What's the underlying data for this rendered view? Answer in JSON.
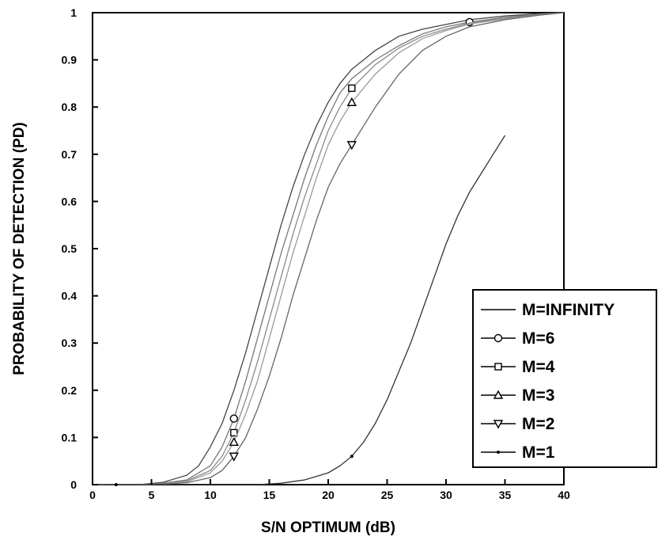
{
  "chart_data": {
    "type": "line",
    "title": "",
    "xlabel": "S/N OPTIMUM (dB)",
    "ylabel": "PROBABILITY OF DETECTION (PD)",
    "xlim": [
      0,
      40
    ],
    "ylim": [
      0,
      1
    ],
    "xticks": [
      "0",
      "5",
      "10",
      "15",
      "20",
      "25",
      "30",
      "35",
      "40"
    ],
    "yticks": [
      "0",
      "0.1",
      "0.2",
      "0.3",
      "0.4",
      "0.5",
      "0.6",
      "0.7",
      "0.8",
      "0.9",
      "1"
    ],
    "grid": false,
    "legend_position": "bottom-right",
    "series": [
      {
        "name": "M=INFINITY",
        "marker": "none",
        "x": [
          0,
          4,
          6,
          8,
          9,
          10,
          11,
          12,
          13,
          14,
          15,
          16,
          17,
          18,
          19,
          20,
          21,
          22,
          24,
          26,
          28,
          30,
          32,
          35,
          38,
          40
        ],
        "y": [
          0,
          0,
          0.005,
          0.02,
          0.04,
          0.08,
          0.13,
          0.2,
          0.28,
          0.37,
          0.46,
          0.55,
          0.63,
          0.7,
          0.76,
          0.81,
          0.85,
          0.88,
          0.92,
          0.95,
          0.965,
          0.975,
          0.985,
          0.993,
          0.998,
          1
        ]
      },
      {
        "name": "M=6",
        "marker": "circle",
        "x": [
          0,
          5,
          8,
          10,
          11,
          12,
          13,
          14,
          15,
          16,
          17,
          18,
          19,
          20,
          21,
          22,
          24,
          26,
          28,
          30,
          32,
          35,
          38,
          40
        ],
        "y": [
          0,
          0,
          0.01,
          0.04,
          0.08,
          0.14,
          0.22,
          0.31,
          0.4,
          0.49,
          0.57,
          0.65,
          0.72,
          0.78,
          0.83,
          0.86,
          0.9,
          0.93,
          0.955,
          0.97,
          0.98,
          0.99,
          0.997,
          1
        ]
      },
      {
        "name": "M=4",
        "marker": "square",
        "x": [
          0,
          5,
          8,
          10,
          11,
          12,
          13,
          14,
          15,
          16,
          17,
          18,
          19,
          20,
          21,
          22,
          24,
          26,
          28,
          30,
          32,
          35,
          38,
          40
        ],
        "y": [
          0,
          0,
          0.008,
          0.03,
          0.06,
          0.11,
          0.18,
          0.26,
          0.35,
          0.44,
          0.53,
          0.61,
          0.68,
          0.75,
          0.8,
          0.84,
          0.89,
          0.925,
          0.95,
          0.965,
          0.978,
          0.988,
          0.996,
          1
        ]
      },
      {
        "name": "M=3",
        "marker": "triangle-up",
        "x": [
          0,
          5,
          8,
          10,
          11,
          12,
          13,
          14,
          15,
          16,
          17,
          18,
          19,
          20,
          21,
          22,
          24,
          26,
          28,
          30,
          32,
          35,
          38,
          40
        ],
        "y": [
          0,
          0,
          0.006,
          0.025,
          0.05,
          0.09,
          0.15,
          0.22,
          0.31,
          0.4,
          0.49,
          0.57,
          0.65,
          0.72,
          0.77,
          0.81,
          0.87,
          0.915,
          0.945,
          0.962,
          0.976,
          0.987,
          0.995,
          1
        ]
      },
      {
        "name": "M=2",
        "marker": "triangle-down",
        "x": [
          0,
          5,
          8,
          10,
          11,
          12,
          13,
          14,
          15,
          16,
          17,
          18,
          19,
          20,
          21,
          22,
          24,
          26,
          28,
          30,
          32,
          35,
          38,
          40
        ],
        "y": [
          0,
          0,
          0.004,
          0.015,
          0.03,
          0.06,
          0.1,
          0.16,
          0.23,
          0.31,
          0.4,
          0.48,
          0.56,
          0.63,
          0.68,
          0.72,
          0.8,
          0.87,
          0.92,
          0.95,
          0.97,
          0.985,
          0.995,
          1
        ]
      },
      {
        "name": "M=1",
        "marker": "dot",
        "x": [
          0,
          14,
          16,
          18,
          20,
          21,
          22,
          23,
          24,
          25,
          26,
          27,
          28,
          29,
          30,
          31,
          32,
          33,
          34,
          35
        ],
        "y": [
          0,
          0,
          0.003,
          0.01,
          0.025,
          0.04,
          0.06,
          0.09,
          0.13,
          0.18,
          0.24,
          0.3,
          0.37,
          0.44,
          0.51,
          0.57,
          0.62,
          0.66,
          0.7,
          0.74
        ]
      }
    ]
  }
}
